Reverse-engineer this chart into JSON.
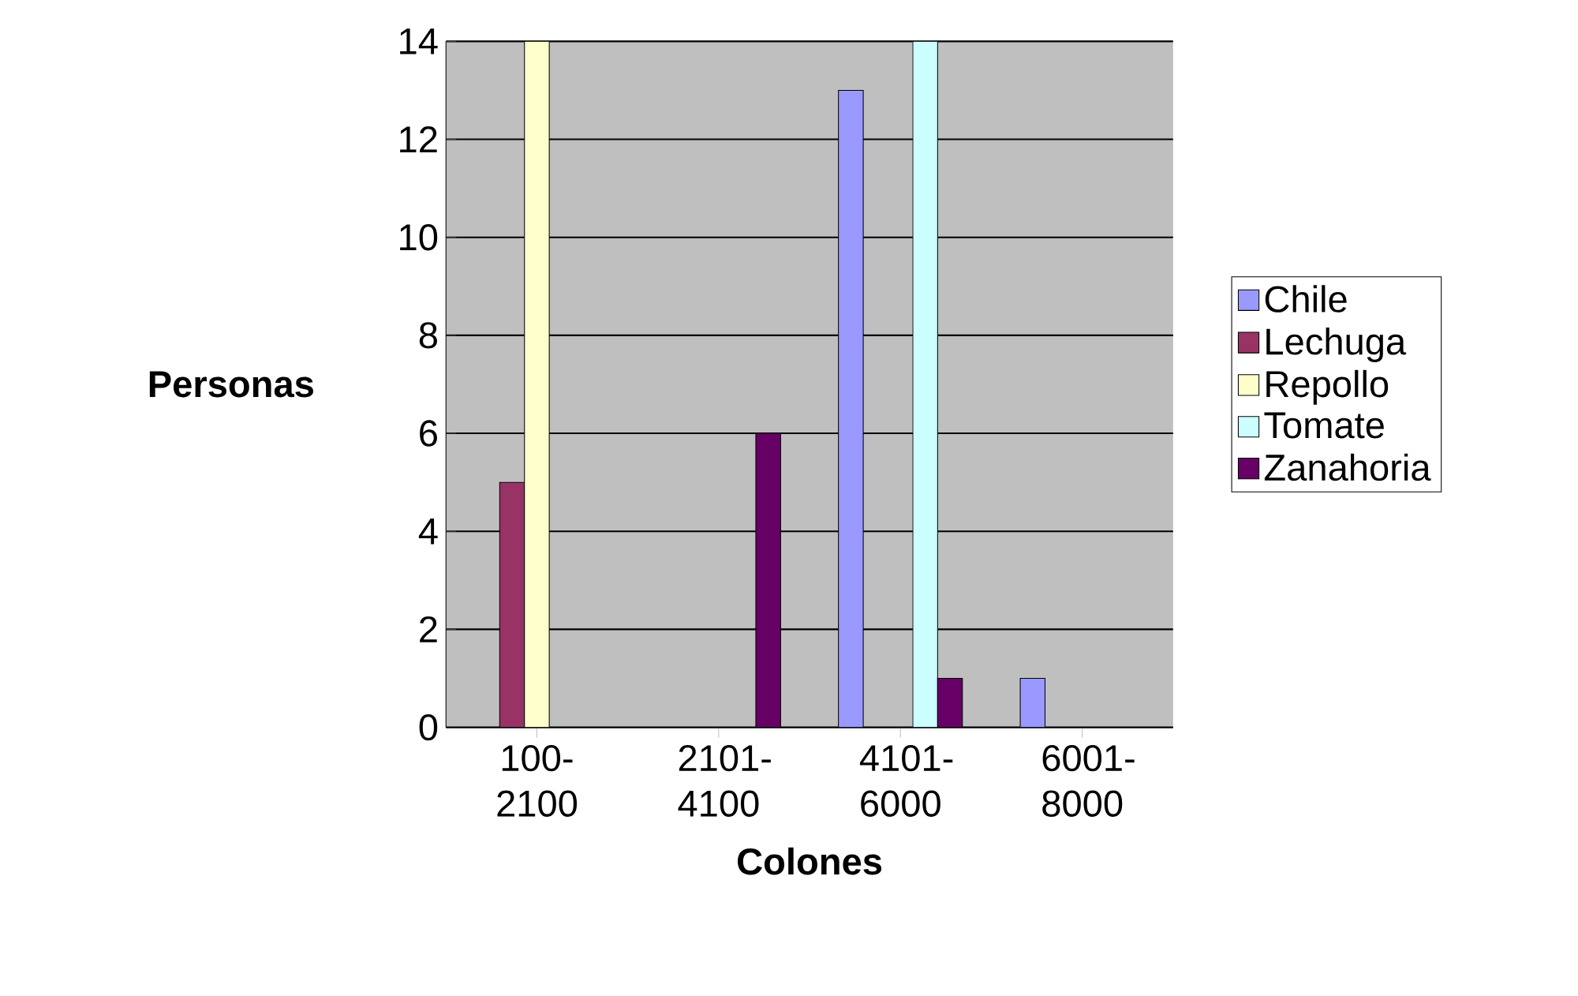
{
  "chart_data": {
    "type": "bar",
    "xlabel": "Colones",
    "ylabel": "Personas",
    "categories": [
      "100-2100",
      "2101-4100",
      "4101-6000",
      "6001-8000"
    ],
    "series": [
      {
        "name": "Chile",
        "color": "#9999ff",
        "values": [
          null,
          null,
          13,
          1
        ]
      },
      {
        "name": "Lechuga",
        "color": "#993366",
        "values": [
          5,
          null,
          null,
          null
        ]
      },
      {
        "name": "Repollo",
        "color": "#ffffcc",
        "values": [
          14,
          null,
          null,
          null
        ]
      },
      {
        "name": "Tomate",
        "color": "#ccffff",
        "values": [
          null,
          null,
          14,
          null
        ]
      },
      {
        "name": "Zanahoria",
        "color": "#660066",
        "values": [
          null,
          6,
          1,
          null
        ]
      }
    ],
    "ylim": [
      0,
      14
    ],
    "yticks": [
      0,
      2,
      4,
      6,
      8,
      10,
      12,
      14
    ],
    "grid": "y",
    "legend": "right"
  }
}
